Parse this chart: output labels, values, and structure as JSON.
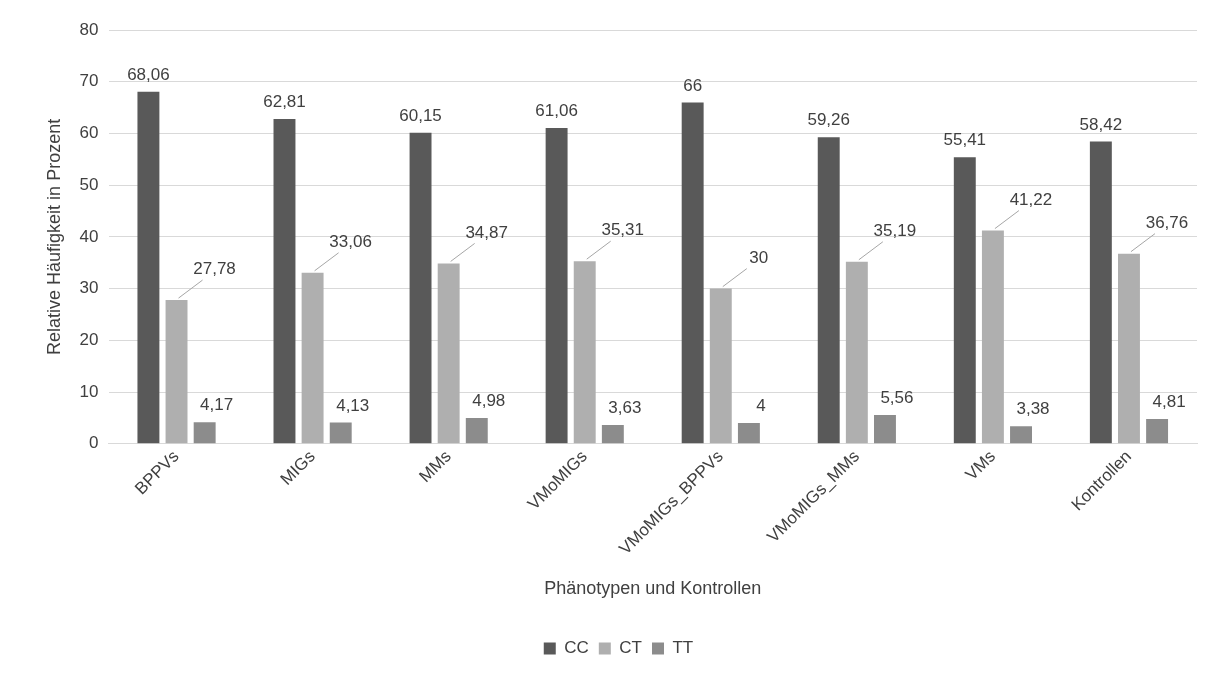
{
  "chart_data": {
    "type": "bar",
    "xlabel": "Phänotypen und Kontrollen",
    "ylabel": "Relative Häufigkeit in Prozent",
    "categories": [
      "BPPVs",
      "MIGs",
      "MMs",
      "VMoMIGs",
      "VMoMIGs_BPPVs",
      "VMoMIGs_MMs",
      "VMs",
      "Kontrollen"
    ],
    "series": [
      {
        "name": "CC",
        "color": "#595959",
        "values": [
          68.06,
          62.81,
          60.15,
          61.06,
          66,
          59.26,
          55.41,
          58.42
        ],
        "value_labels": [
          "68,06",
          "62,81",
          "60,15",
          "61,06",
          "66",
          "59,26",
          "55,41",
          "58,42"
        ]
      },
      {
        "name": "CT",
        "color": "#afafaf",
        "values": [
          27.78,
          33.06,
          34.87,
          35.31,
          30,
          35.19,
          41.22,
          36.76
        ],
        "value_labels": [
          "27,78",
          "33,06",
          "34,87",
          "35,31",
          "30",
          "35,19",
          "41,22",
          "36,76"
        ]
      },
      {
        "name": "TT",
        "color": "#8c8c8c",
        "values": [
          4.17,
          4.13,
          4.98,
          3.63,
          4,
          5.56,
          3.38,
          4.81
        ],
        "value_labels": [
          "4,17",
          "4,13",
          "4,98",
          "3,63",
          "4",
          "5,56",
          "3,38",
          "4,81"
        ]
      }
    ],
    "ylim": [
      0,
      80
    ],
    "yticks": [
      0,
      10,
      20,
      30,
      40,
      50,
      60,
      70,
      80
    ],
    "grid": "y",
    "legend": "bottom"
  }
}
